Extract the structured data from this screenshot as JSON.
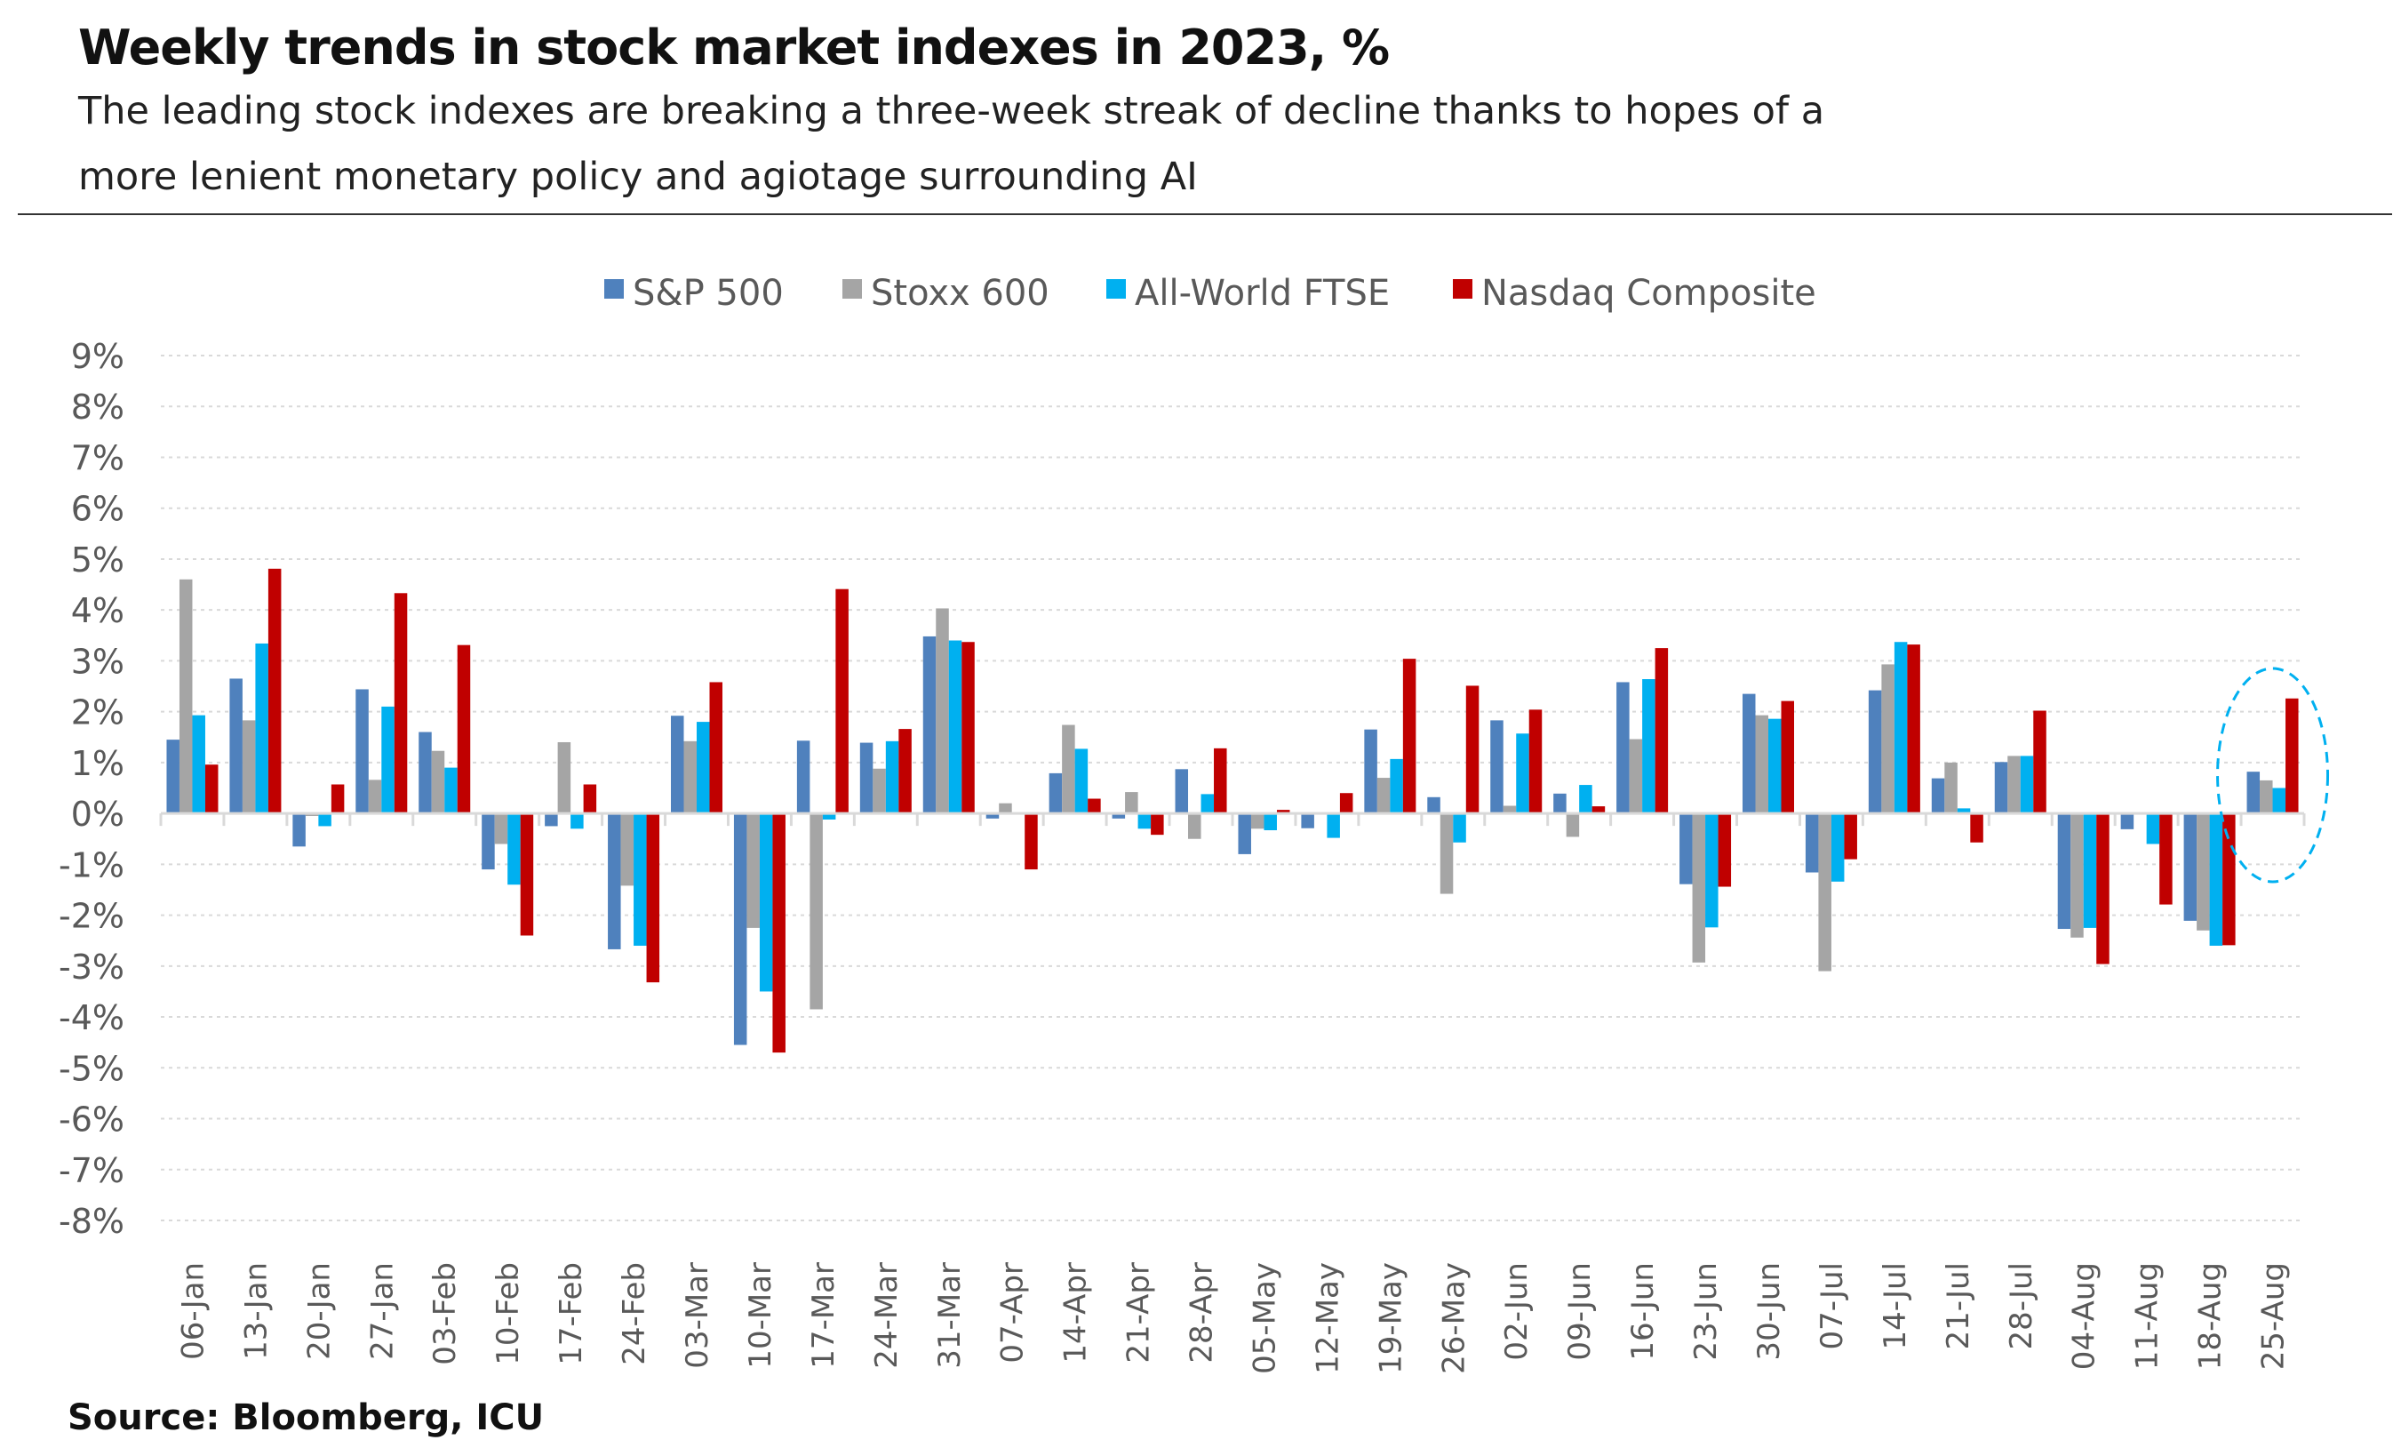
{
  "header": {
    "title": "Weekly trends in stock market indexes in 2023, %",
    "subtitle_line1": "The leading stock indexes are breaking a three-week streak of decline thanks to hopes of a",
    "subtitle_line2": "more lenient monetary policy and agiotage surrounding AI"
  },
  "footer": {
    "source": "Source: Bloomberg, ICU"
  },
  "chart_data": {
    "type": "bar",
    "title": "",
    "xlabel": "",
    "ylabel": "",
    "ylim": [
      -8,
      9
    ],
    "yticks": [
      "9%",
      "8%",
      "7%",
      "6%",
      "5%",
      "4%",
      "3%",
      "2%",
      "1%",
      "0%",
      "-1%",
      "-2%",
      "-3%",
      "-4%",
      "-5%",
      "-6%",
      "-7%",
      "-8%"
    ],
    "grid": "horizontal dashed",
    "legend": "top-center",
    "highlight": {
      "category": "25-Aug",
      "shape": "dashed ellipse",
      "color": "#00B0F0"
    },
    "categories": [
      "06-Jan",
      "13-Jan",
      "20-Jan",
      "27-Jan",
      "03-Feb",
      "10-Feb",
      "17-Feb",
      "24-Feb",
      "03-Mar",
      "10-Mar",
      "17-Mar",
      "24-Mar",
      "31-Mar",
      "07-Apr",
      "14-Apr",
      "21-Apr",
      "28-Apr",
      "05-May",
      "12-May",
      "19-May",
      "26-May",
      "02-Jun",
      "09-Jun",
      "16-Jun",
      "23-Jun",
      "30-Jun",
      "07-Jul",
      "14-Jul",
      "21-Jul",
      "28-Jul",
      "04-Aug",
      "11-Aug",
      "18-Aug",
      "25-Aug"
    ],
    "series": [
      {
        "name": "S&P 500",
        "color": "#4F81BD",
        "values": [
          1.45,
          2.65,
          -0.65,
          2.44,
          1.6,
          -1.1,
          -0.25,
          -2.67,
          1.92,
          -4.55,
          1.43,
          1.39,
          3.48,
          -0.1,
          0.79,
          -0.1,
          0.87,
          -0.8,
          -0.29,
          1.65,
          0.32,
          1.83,
          0.39,
          2.58,
          -1.39,
          2.35,
          -1.16,
          2.42,
          0.69,
          1.01,
          -2.27,
          -0.31,
          -2.11,
          0.82
        ]
      },
      {
        "name": "Stoxx 600",
        "color": "#A5A5A5",
        "values": [
          4.6,
          1.83,
          -0.05,
          0.66,
          1.23,
          -0.6,
          1.4,
          -1.42,
          1.42,
          -2.25,
          -3.85,
          0.88,
          4.03,
          0.2,
          1.74,
          0.42,
          -0.5,
          -0.3,
          0.0,
          0.7,
          -1.58,
          0.15,
          -0.46,
          1.46,
          -2.93,
          1.93,
          -3.1,
          2.93,
          1.0,
          1.13,
          -2.44,
          0.0,
          -2.3,
          0.65
        ]
      },
      {
        "name": "All-World FTSE",
        "color": "#00B0F0",
        "values": [
          1.93,
          3.34,
          -0.25,
          2.1,
          0.9,
          -1.4,
          -0.3,
          -2.6,
          1.8,
          -3.5,
          -0.12,
          1.42,
          3.4,
          0.0,
          1.27,
          -0.3,
          0.38,
          -0.33,
          -0.48,
          1.07,
          -0.57,
          1.57,
          0.56,
          2.64,
          -2.24,
          1.86,
          -1.34,
          3.37,
          0.1,
          1.13,
          -2.25,
          -0.6,
          -2.6,
          0.5
        ]
      },
      {
        "name": "Nasdaq Composite",
        "color": "#C00000",
        "values": [
          0.96,
          4.81,
          0.57,
          4.33,
          3.31,
          -2.4,
          0.57,
          -3.32,
          2.58,
          -4.7,
          4.41,
          1.66,
          3.37,
          -1.1,
          0.29,
          -0.42,
          1.28,
          0.07,
          0.4,
          3.04,
          2.51,
          2.04,
          0.14,
          3.25,
          -1.44,
          2.21,
          -0.9,
          3.32,
          -0.57,
          2.02,
          -2.96,
          -1.79,
          -2.59,
          2.26
        ]
      }
    ]
  }
}
